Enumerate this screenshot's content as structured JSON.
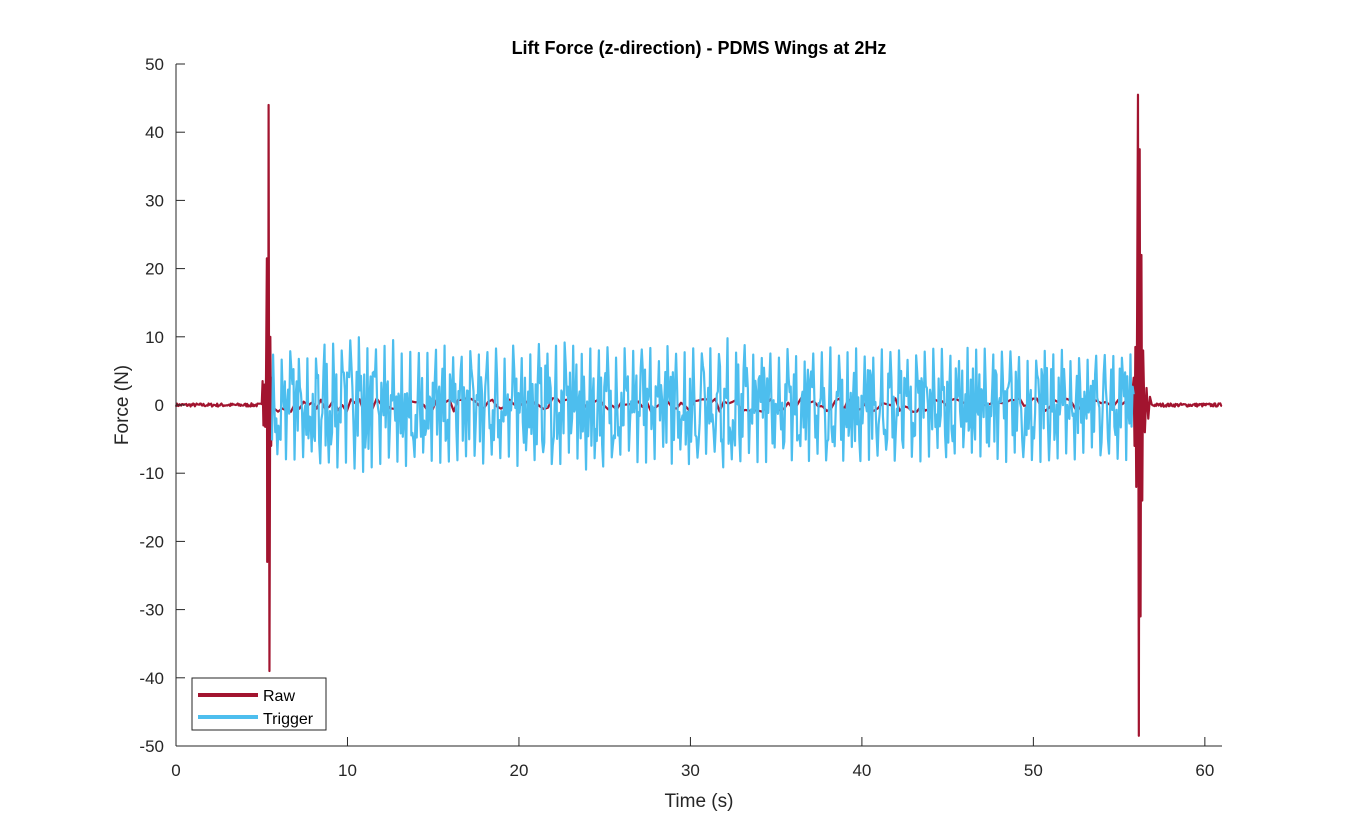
{
  "chart_data": {
    "type": "line",
    "title": "Lift Force (z-direction) - PDMS Wings at 2Hz",
    "xlabel": "Time (s)",
    "ylabel": "Force (N)",
    "xlim": [
      0,
      61
    ],
    "ylim": [
      -50,
      50
    ],
    "xticks": [
      0,
      10,
      20,
      30,
      40,
      50,
      60
    ],
    "yticks": [
      -50,
      -40,
      -30,
      -20,
      -10,
      0,
      10,
      20,
      30,
      40,
      50
    ],
    "grid": false,
    "legend": {
      "placement": "bottom-left"
    },
    "series": [
      {
        "name": "Raw",
        "color": "#A2142F",
        "description_points": {
          "baseline": [
            [
              0,
              0
            ],
            [
              5.0,
              0
            ]
          ],
          "spike_start": [
            [
              5.4,
              44
            ],
            [
              5.45,
              -39
            ]
          ],
          "spike_end": [
            [
              56.1,
              45.5
            ],
            [
              56.15,
              -48.5
            ]
          ],
          "baseline_end": [
            [
              57,
              0
            ],
            [
              61,
              0
            ]
          ]
        }
      },
      {
        "name": "Trigger",
        "color": "#4DBEEE",
        "oscillation": {
          "start": 5.6,
          "end": 55.9,
          "frequency_hz": 2,
          "amplitude_envelope": [
            [
              5.6,
              8.5
            ],
            [
              8,
              9
            ],
            [
              11,
              10.5
            ],
            [
              14,
              9
            ],
            [
              17,
              8.5
            ],
            [
              20,
              9
            ],
            [
              24,
              9.5
            ],
            [
              28,
              8.5
            ],
            [
              32,
              10
            ],
            [
              36,
              8.5
            ],
            [
              40,
              8.5
            ],
            [
              44,
              8.5
            ],
            [
              48,
              8.5
            ],
            [
              52,
              8.5
            ],
            [
              55.9,
              8.5
            ]
          ]
        }
      }
    ]
  }
}
